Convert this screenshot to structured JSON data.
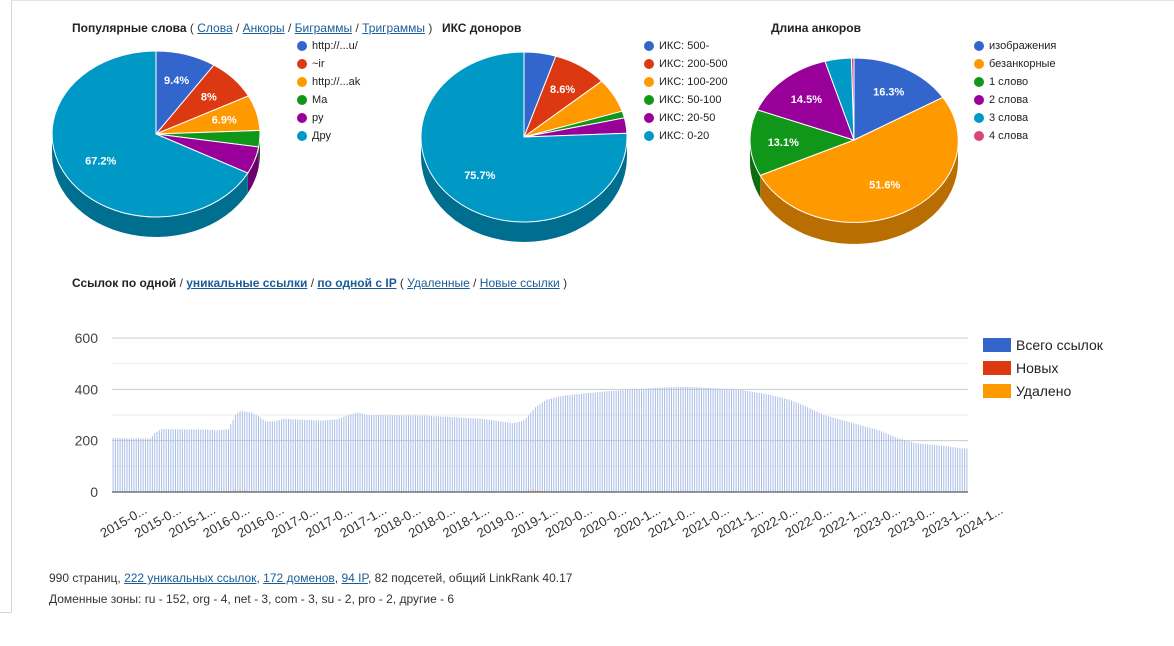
{
  "pies": {
    "words": {
      "title": "Популярные слова",
      "links": [
        "Слова",
        "Анкоры",
        "Биграммы",
        "Триграммы"
      ],
      "legend": [
        "http://...u/",
        "~ir",
        "http://...ak",
        "Ма",
        "ру",
        "Дру"
      ],
      "slice_labels": [
        "9.4%",
        "8%",
        "6.9%",
        "67.2%"
      ]
    },
    "iks": {
      "title": "ИКС доноров",
      "legend": [
        "ИКС: 500-",
        "ИКС: 200-500",
        "ИКС: 100-200",
        "ИКС: 50-100",
        "ИКС: 20-50",
        "ИКС: 0-20"
      ],
      "slice_labels": [
        "8.6%",
        "75.7%"
      ]
    },
    "anchor": {
      "title": "Длина анкоров",
      "legend": [
        "изображения",
        "безанкорные",
        "1 слово",
        "2 слова",
        "3 слова",
        "4 слова"
      ],
      "slice_labels": [
        "16.3%",
        "51.6%",
        "13.1%",
        "14.5%"
      ]
    }
  },
  "bar_section": {
    "prefix": "Ссылок по одной",
    "links": [
      "уникальные ссылки",
      "по одной с IP",
      "Удаленные",
      "Новые ссылки"
    ]
  },
  "footer": {
    "line1_prefix": "990 страниц, ",
    "unique_links": "222 уникальных ссылок",
    "domains": "172 доменов",
    "ips": "94 IP",
    "line1_suffix": ", 82 подсетей, общий LinkRank 40.17",
    "line2": "Доменные зоны: ru - 152, org - 4, net - 3, com - 3, su - 2, pro - 2, другие - 6"
  },
  "colors": {
    "blue": "#3366cc",
    "red": "#dc3912",
    "orange": "#ff9900",
    "green": "#109618",
    "purple": "#990099",
    "teal": "#0099c6",
    "pink": "#dd4477"
  },
  "chart_data": [
    {
      "type": "pie",
      "title": "Популярные слова",
      "labels": [
        "http://...u/",
        "~ir",
        "http://...ak",
        "Ма",
        "ру",
        "Дру"
      ],
      "values": [
        9.4,
        8.0,
        6.9,
        3.2,
        5.3,
        67.2
      ]
    },
    {
      "type": "pie",
      "title": "ИКС доноров",
      "labels": [
        "ИКС: 500-",
        "ИКС: 200-500",
        "ИКС: 100-200",
        "ИКС: 50-100",
        "ИКС: 20-50",
        "ИКС: 0-20"
      ],
      "values": [
        5.0,
        8.6,
        6.5,
        1.3,
        2.9,
        75.7
      ]
    },
    {
      "type": "pie",
      "title": "Длина анкоров",
      "labels": [
        "изображения",
        "безанкорные",
        "1 слово",
        "2 слова",
        "3 слова",
        "4 слова"
      ],
      "values": [
        16.3,
        51.6,
        13.1,
        14.5,
        4.1,
        0.4
      ]
    },
    {
      "type": "bar",
      "stacked": true,
      "series_names": [
        "Всего ссылок",
        "Новых",
        "Удалено"
      ],
      "ylim": [
        0,
        600
      ],
      "yticks": [
        0,
        200,
        400,
        600
      ],
      "grid": true,
      "legend_position": "right",
      "x_tick_labels": [
        "2015-0...",
        "2015-0...",
        "2015-1...",
        "2016-0...",
        "2016-0...",
        "2017-0...",
        "2017-0...",
        "2017-1...",
        "2018-0...",
        "2018-0...",
        "2018-1...",
        "2019-0...",
        "2019-1...",
        "2020-0...",
        "2020-0...",
        "2020-1...",
        "2021-0...",
        "2021-0...",
        "2021-1...",
        "2022-0...",
        "2022-0...",
        "2022-1...",
        "2023-0...",
        "2023-0...",
        "2023-1...",
        "2024-1..."
      ],
      "total_series_knots": [
        [
          0,
          210
        ],
        [
          16,
          208
        ],
        [
          18,
          230
        ],
        [
          21,
          245
        ],
        [
          40,
          243
        ],
        [
          45,
          240
        ],
        [
          50,
          245
        ],
        [
          53,
          300
        ],
        [
          55,
          315
        ],
        [
          60,
          310
        ],
        [
          63,
          295
        ],
        [
          66,
          275
        ],
        [
          70,
          275
        ],
        [
          74,
          285
        ],
        [
          90,
          278
        ],
        [
          97,
          283
        ],
        [
          102,
          300
        ],
        [
          106,
          310
        ],
        [
          110,
          300
        ],
        [
          135,
          298
        ],
        [
          150,
          290
        ],
        [
          160,
          285
        ],
        [
          168,
          275
        ],
        [
          173,
          268
        ],
        [
          178,
          278
        ],
        [
          183,
          330
        ],
        [
          188,
          360
        ],
        [
          195,
          375
        ],
        [
          205,
          385
        ],
        [
          218,
          395
        ],
        [
          240,
          408
        ],
        [
          250,
          410
        ],
        [
          272,
          398
        ],
        [
          284,
          380
        ],
        [
          293,
          360
        ],
        [
          300,
          335
        ],
        [
          308,
          300
        ],
        [
          318,
          275
        ],
        [
          326,
          255
        ],
        [
          332,
          240
        ],
        [
          340,
          210
        ],
        [
          348,
          190
        ],
        [
          360,
          180
        ],
        [
          368,
          170
        ],
        [
          370,
          170
        ]
      ],
      "new_spikes": [
        [
          53,
          10
        ],
        [
          55,
          12
        ],
        [
          57,
          8
        ],
        [
          180,
          10
        ],
        [
          182,
          12
        ],
        [
          184,
          8
        ]
      ]
    }
  ]
}
